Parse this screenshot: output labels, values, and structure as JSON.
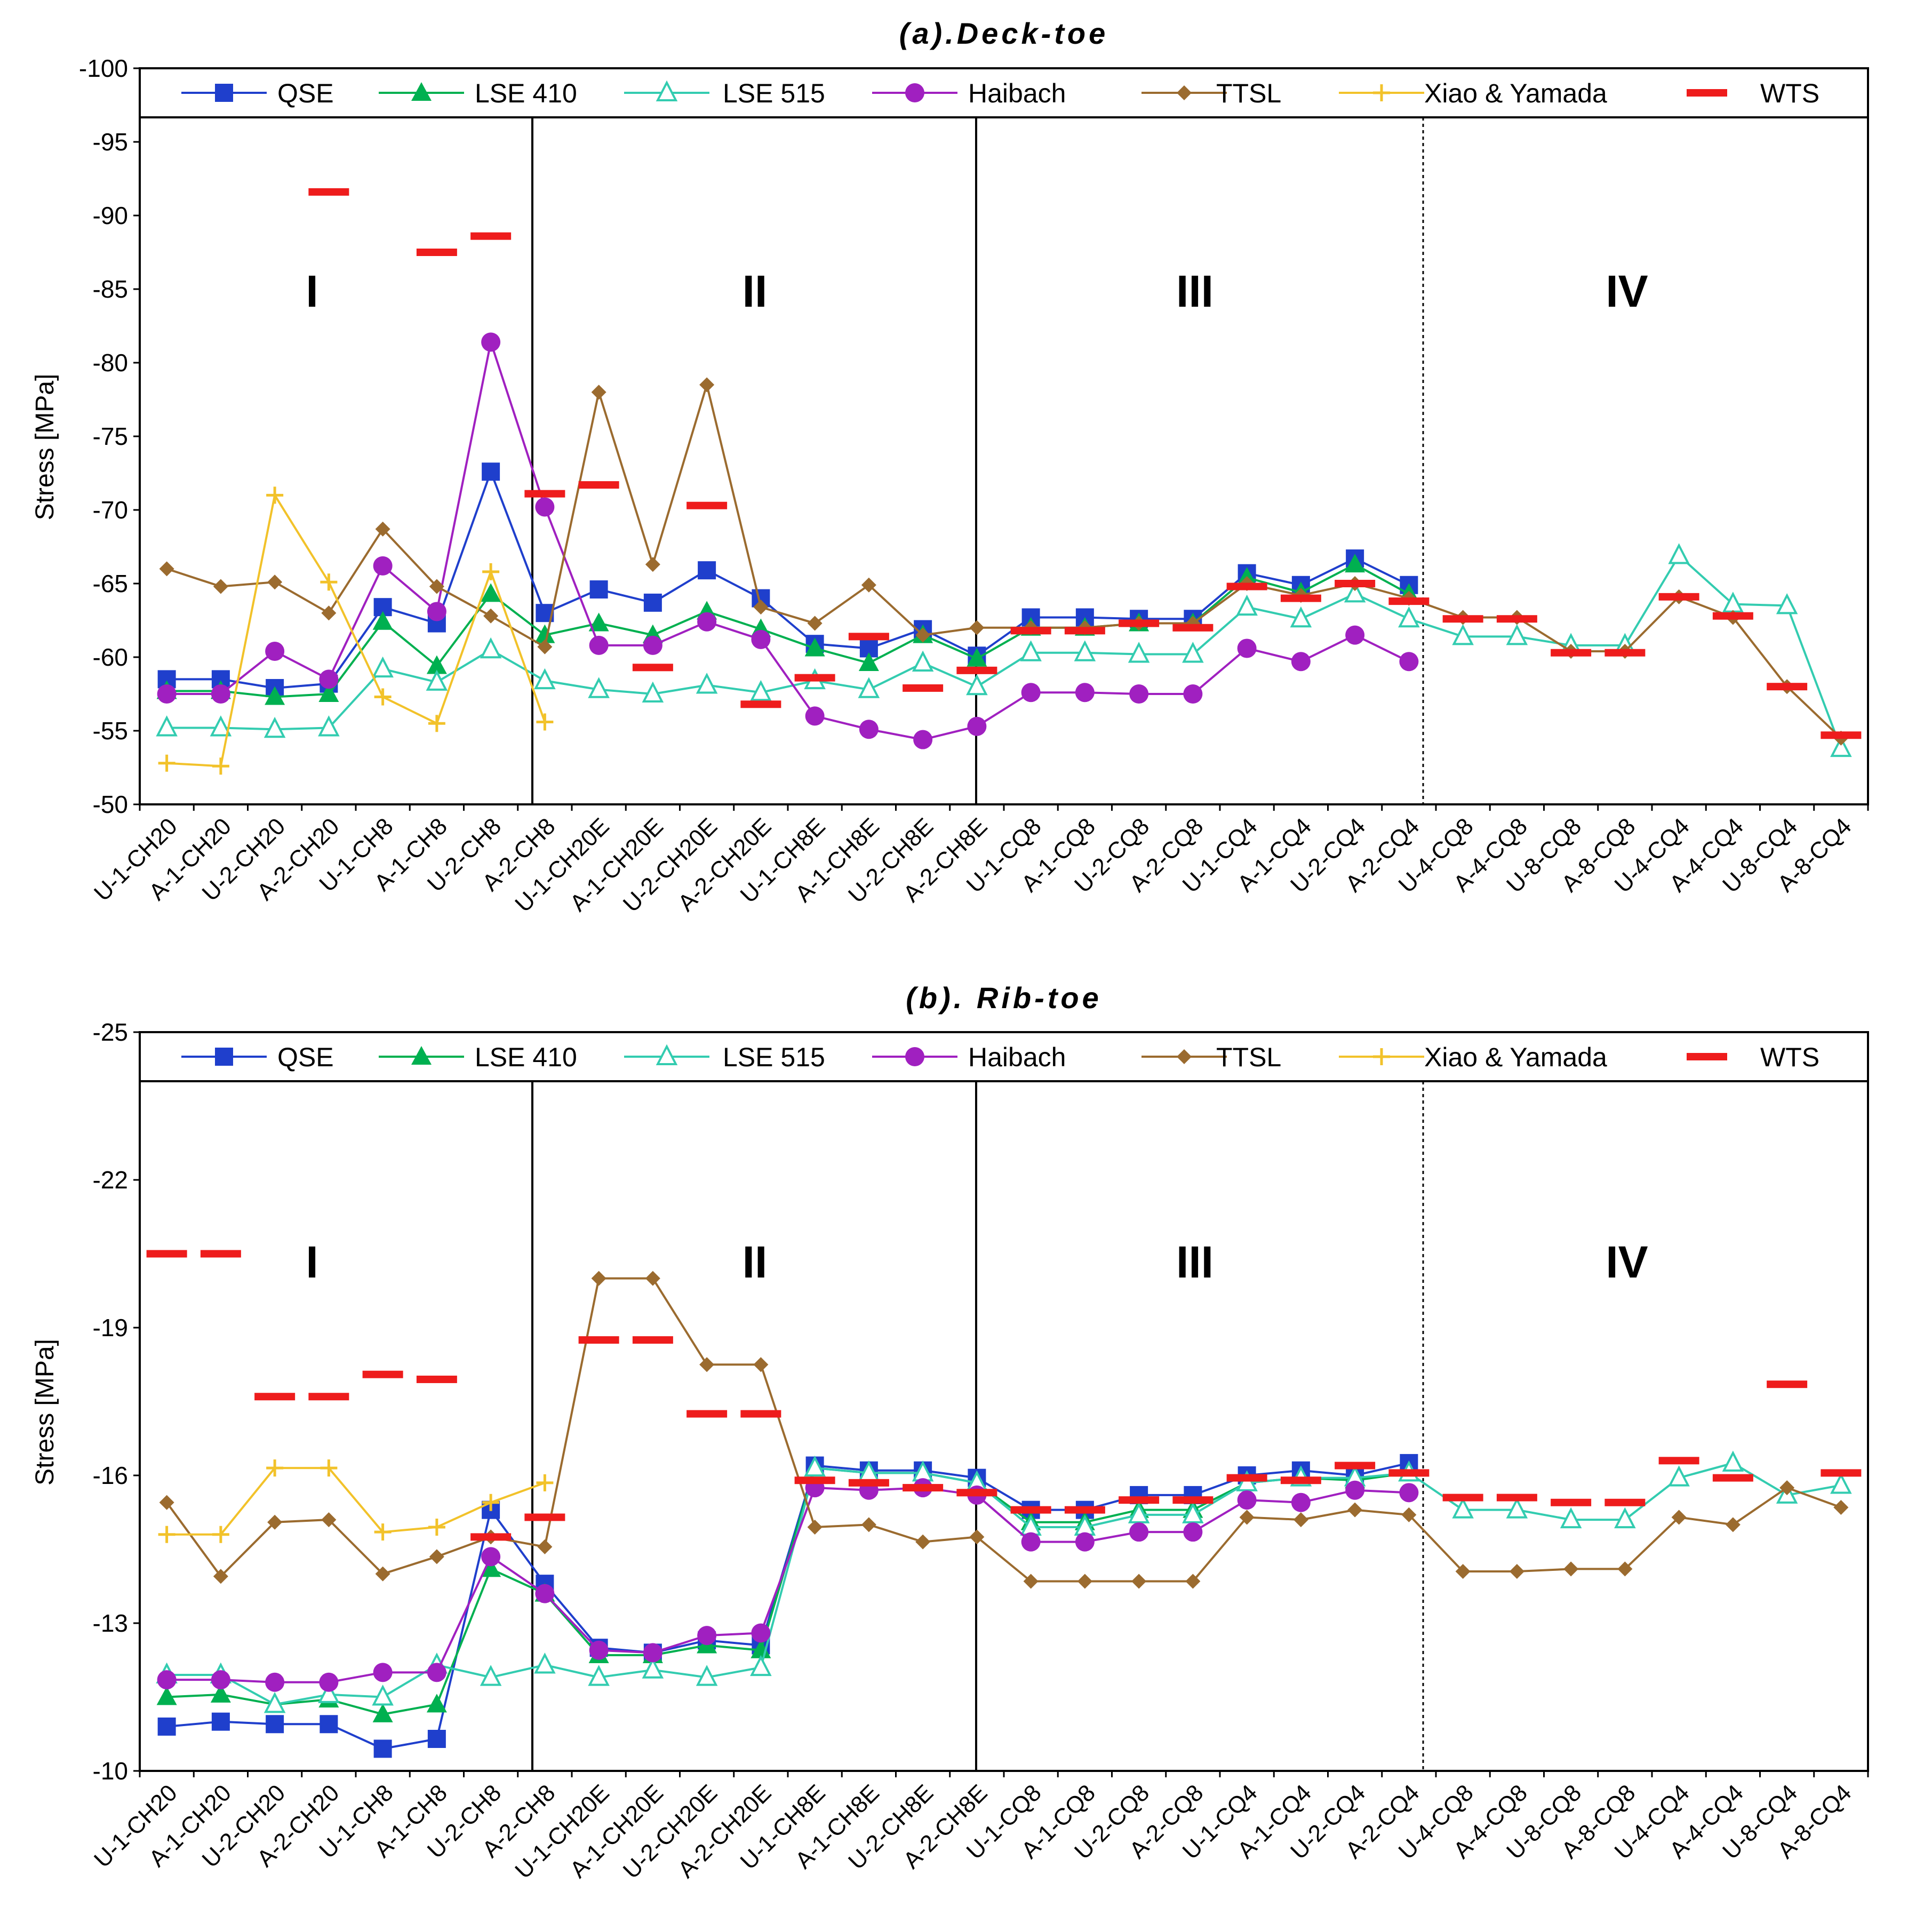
{
  "chart_data": [
    {
      "type": "line",
      "title": "(a).Deck-toe",
      "xlabel": "",
      "ylabel": "Stress [MPa]",
      "ylim": [
        -50,
        -100
      ],
      "yticks": [
        "-100",
        "-95",
        "-90",
        "-85",
        "-80",
        "-75",
        "-70",
        "-65",
        "-60",
        "-55",
        "-50"
      ],
      "regions": [
        "I",
        "II",
        "III",
        "IV"
      ],
      "categories": [
        "U-1-CH20",
        "A-1-CH20",
        "U-2-CH20",
        "A-2-CH20",
        "U-1-CH8",
        "A-1-CH8",
        "U-2-CH8",
        "A-2-CH8",
        "U-1-CH20E",
        "A-1-CH20E",
        "U-2-CH20E",
        "A-2-CH20E",
        "U-1-CH8E",
        "A-1-CH8E",
        "U-2-CH8E",
        "A-2-CH8E",
        "U-1-CQ8",
        "A-1-CQ8",
        "U-2-CQ8",
        "A-2-CQ8",
        "U-1-CQ4",
        "A-1-CQ4",
        "U-2-CQ4",
        "A-2-CQ4",
        "U-4-CQ8",
        "A-4-CQ8",
        "U-8-CQ8",
        "A-8-CQ8",
        "U-4-CQ4",
        "A-4-CQ4",
        "U-8-CQ4",
        "A-8-CQ4"
      ],
      "legend": [
        "QSE",
        "LSE 410",
        "LSE 515",
        "Haibach",
        "TTSL",
        "Xiao & Yamada",
        "WTS"
      ],
      "series": [
        {
          "name": "QSE",
          "color": "#1f3fcc",
          "marker": "square",
          "values": [
            -58.5,
            -58.5,
            -57.9,
            -58.2,
            -63.4,
            -62.3,
            -72.6,
            -63.0,
            -64.6,
            -63.7,
            -65.9,
            -64.0,
            -60.9,
            -60.6,
            -61.9,
            -60.1,
            -62.7,
            -62.7,
            -62.6,
            -62.6,
            -65.7,
            -64.9,
            -66.7,
            -64.9,
            null,
            null,
            null,
            null,
            null,
            null,
            null,
            null
          ]
        },
        {
          "name": "LSE 410",
          "color": "#00b050",
          "marker": "triangle",
          "values": [
            -57.7,
            -57.7,
            -57.3,
            -57.5,
            -62.4,
            -59.4,
            -64.3,
            -61.5,
            -62.3,
            -61.5,
            -63.1,
            -61.9,
            -60.6,
            -59.6,
            -61.5,
            -59.9,
            -62.0,
            -62.0,
            -62.3,
            -62.3,
            -65.4,
            -64.4,
            -66.3,
            -64.3,
            null,
            null,
            null,
            null,
            null,
            null,
            null,
            null
          ]
        },
        {
          "name": "LSE 515",
          "color": "#33ccb0",
          "marker": "triangle-open",
          "values": [
            -55.2,
            -55.2,
            -55.1,
            -55.2,
            -59.2,
            -58.3,
            -60.5,
            -58.4,
            -57.8,
            -57.5,
            -58.1,
            -57.6,
            -58.4,
            -57.8,
            -59.6,
            -58.0,
            -60.3,
            -60.3,
            -60.2,
            -60.2,
            -63.4,
            -62.6,
            -64.3,
            -62.6,
            -61.4,
            -61.4,
            -60.8,
            -60.8,
            -66.9,
            -63.6,
            -63.5,
            -53.8
          ]
        },
        {
          "name": "Haibach",
          "color": "#a020c0",
          "marker": "circle",
          "values": [
            -57.5,
            -57.5,
            -60.4,
            -58.5,
            -66.2,
            -63.1,
            -81.4,
            -70.2,
            -60.8,
            -60.8,
            -62.4,
            -61.2,
            -56.0,
            -55.1,
            -54.4,
            -55.3,
            -57.6,
            -57.6,
            -57.5,
            -57.5,
            -60.6,
            -59.7,
            -61.5,
            -59.7,
            null,
            null,
            null,
            null,
            null,
            null,
            null,
            null
          ]
        },
        {
          "name": "TTSL",
          "color": "#9b6b2f",
          "marker": "diamond",
          "values": [
            -66.0,
            -64.8,
            -65.1,
            -63.0,
            -68.7,
            -64.8,
            -62.8,
            -60.7,
            -78.0,
            -66.3,
            -78.5,
            -63.4,
            -62.3,
            -64.9,
            -61.5,
            -62.0,
            -62.0,
            -62.0,
            -62.3,
            -62.3,
            -65.0,
            -64.2,
            -65.0,
            -64.0,
            -62.7,
            -62.7,
            -60.4,
            -60.4,
            -64.1,
            -62.7,
            -58.0,
            -54.5
          ]
        },
        {
          "name": "Xiao & Yamada",
          "color": "#f2c22a",
          "marker": "plus",
          "values": [
            -52.8,
            -52.6,
            -71.0,
            -65.1,
            -57.3,
            -55.5,
            -65.8,
            -55.6,
            null,
            null,
            null,
            null,
            null,
            null,
            null,
            null,
            null,
            null,
            null,
            null,
            null,
            null,
            null,
            null,
            null,
            null,
            null,
            null,
            null,
            null,
            null,
            null
          ]
        },
        {
          "name": "WTS",
          "color": "#ee1c1c",
          "marker": "dash",
          "values": [
            null,
            null,
            null,
            -91.6,
            null,
            -87.5,
            -88.6,
            -71.1,
            -71.7,
            -59.3,
            -70.3,
            -56.8,
            -58.6,
            -61.4,
            -57.9,
            -59.1,
            -61.8,
            -61.8,
            -62.3,
            -62.0,
            -64.8,
            -64.0,
            -65.0,
            -63.8,
            -62.6,
            -62.6,
            -60.3,
            -60.3,
            -64.1,
            -62.8,
            -58.0,
            -54.7
          ]
        }
      ]
    },
    {
      "type": "line",
      "title": "(b). Rib-toe",
      "xlabel": "",
      "ylabel": "Stress [MPa]",
      "ylim": [
        -10,
        -25
      ],
      "yticks": [
        "-25",
        "-22",
        "-19",
        "-16",
        "-13",
        "-10"
      ],
      "regions": [
        "I",
        "II",
        "III",
        "IV"
      ],
      "categories": [
        "U-1-CH20",
        "A-1-CH20",
        "U-2-CH20",
        "A-2-CH20",
        "U-1-CH8",
        "A-1-CH8",
        "U-2-CH8",
        "A-2-CH8",
        "U-1-CH20E",
        "A-1-CH20E",
        "U-2-CH20E",
        "A-2-CH20E",
        "U-1-CH8E",
        "A-1-CH8E",
        "U-2-CH8E",
        "A-2-CH8E",
        "U-1-CQ8",
        "A-1-CQ8",
        "U-2-CQ8",
        "A-2-CQ8",
        "U-1-CQ4",
        "A-1-CQ4",
        "U-2-CQ4",
        "A-2-CQ4",
        "U-4-CQ8",
        "A-4-CQ8",
        "U-8-CQ8",
        "A-8-CQ8",
        "U-4-CQ4",
        "A-4-CQ4",
        "U-8-CQ4",
        "A-8-CQ4"
      ],
      "legend": [
        "QSE",
        "LSE 410",
        "LSE 515",
        "Haibach",
        "TTSL",
        "Xiao & Yamada",
        "WTS"
      ],
      "series": [
        {
          "name": "QSE",
          "color": "#1f3fcc",
          "marker": "square",
          "values": [
            -10.9,
            -11.0,
            -10.95,
            -10.95,
            -10.45,
            -10.65,
            -15.3,
            -13.8,
            -12.5,
            -12.4,
            -12.65,
            -12.55,
            -16.2,
            -16.1,
            -16.1,
            -15.95,
            -15.3,
            -15.3,
            -15.6,
            -15.6,
            -16.0,
            -16.1,
            -16.0,
            -16.25,
            null,
            null,
            null,
            null,
            null,
            null,
            null,
            null
          ]
        },
        {
          "name": "LSE 410",
          "color": "#00b050",
          "marker": "triangle",
          "values": [
            -11.5,
            -11.55,
            -11.35,
            -11.45,
            -11.15,
            -11.35,
            -14.1,
            -13.6,
            -12.35,
            -12.35,
            -12.55,
            -12.45,
            -16.15,
            -16.05,
            -16.05,
            -15.85,
            -15.05,
            -15.05,
            -15.3,
            -15.3,
            -15.85,
            -15.95,
            -15.9,
            -16.05,
            null,
            null,
            null,
            null,
            null,
            null,
            null,
            null
          ]
        },
        {
          "name": "LSE 515",
          "color": "#33ccb0",
          "marker": "triangle-open",
          "values": [
            -11.95,
            -11.95,
            -11.35,
            -11.55,
            -11.5,
            -12.15,
            -11.9,
            -12.15,
            -11.9,
            -12.05,
            -11.9,
            -12.1,
            -16.15,
            -16.05,
            -16.05,
            -15.85,
            -14.95,
            -14.95,
            -15.2,
            -15.2,
            -15.85,
            -15.95,
            -15.95,
            -16.05,
            -15.3,
            -15.3,
            -15.1,
            -15.1,
            -15.95,
            -16.25,
            -15.6,
            -15.8
          ]
        },
        {
          "name": "Haibach",
          "color": "#a020c0",
          "marker": "circle",
          "values": [
            -11.85,
            -11.85,
            -11.8,
            -11.8,
            -12.0,
            -12.0,
            -14.35,
            -13.6,
            -12.45,
            -12.4,
            -12.75,
            -12.8,
            -15.75,
            -15.7,
            -15.75,
            -15.6,
            -14.65,
            -14.65,
            -14.85,
            -14.85,
            -15.5,
            -15.45,
            -15.7,
            -15.65,
            null,
            null,
            null,
            null,
            null,
            null,
            null,
            null
          ]
        },
        {
          "name": "TTSL",
          "color": "#9b6b2f",
          "marker": "diamond",
          "values": [
            -15.45,
            -13.95,
            -15.05,
            -15.1,
            -14.0,
            -14.35,
            -14.75,
            -14.55,
            -20.0,
            -20.0,
            -18.25,
            -18.25,
            -14.95,
            -15.0,
            -14.65,
            -14.75,
            -13.85,
            -13.85,
            -13.85,
            -13.85,
            -15.15,
            -15.1,
            -15.3,
            -15.2,
            -14.05,
            -14.05,
            -14.1,
            -14.1,
            -15.15,
            -15.0,
            -15.75,
            -15.35
          ]
        },
        {
          "name": "Xiao & Yamada",
          "color": "#f2c22a",
          "marker": "plus",
          "values": [
            -14.8,
            -14.8,
            -16.15,
            -16.15,
            -14.85,
            -14.95,
            -15.45,
            -15.85,
            null,
            null,
            null,
            null,
            null,
            null,
            null,
            null,
            null,
            null,
            null,
            null,
            null,
            null,
            null,
            null,
            null,
            null,
            null,
            null,
            null,
            null,
            null,
            null
          ]
        },
        {
          "name": "WTS",
          "color": "#ee1c1c",
          "marker": "dash",
          "values": [
            -20.5,
            -20.5,
            -17.6,
            -17.6,
            -18.05,
            -17.95,
            -14.75,
            -15.15,
            -18.75,
            -18.75,
            -17.25,
            -17.25,
            -15.9,
            -15.85,
            -15.75,
            -15.65,
            -15.3,
            -15.3,
            -15.5,
            -15.5,
            -15.95,
            -15.9,
            -16.2,
            -16.05,
            -15.55,
            -15.55,
            -15.45,
            -15.45,
            -16.3,
            -15.95,
            -17.85,
            -16.05
          ]
        }
      ]
    }
  ]
}
